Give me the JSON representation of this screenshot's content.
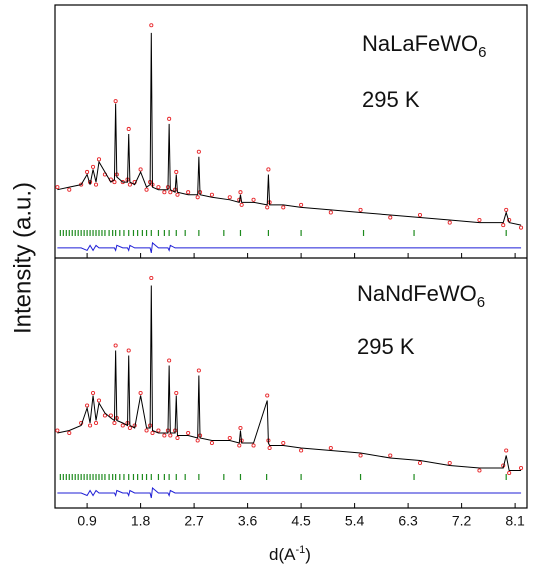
{
  "chart_data": [
    {
      "type": "rietveld",
      "label": "NaLaFeWO",
      "label_sub": "6",
      "temperature": "295 K",
      "ylabel": "Intensity (a.u.)",
      "xlim": [
        0.36,
        8.3
      ],
      "ylim": [
        0,
        100
      ],
      "x": [
        0.4,
        0.6,
        0.8,
        0.9,
        0.95,
        1.0,
        1.05,
        1.1,
        1.2,
        1.3,
        1.36,
        1.38,
        1.4,
        1.5,
        1.58,
        1.6,
        1.62,
        1.7,
        1.8,
        1.9,
        1.96,
        1.98,
        2.0,
        2.1,
        2.2,
        2.26,
        2.28,
        2.3,
        2.38,
        2.4,
        2.42,
        2.6,
        2.76,
        2.78,
        2.8,
        3.0,
        3.3,
        3.46,
        3.48,
        3.5,
        3.7,
        3.93,
        3.95,
        3.97,
        4.2,
        4.5,
        5.0,
        5.5,
        6.0,
        6.5,
        7.0,
        7.5,
        7.9,
        7.95,
        8.0,
        8.2
      ],
      "series": [
        {
          "name": "Observed",
          "color": "#e8262a",
          "values": [
            28,
            27,
            29,
            34,
            30,
            36,
            29,
            39,
            33,
            31,
            30,
            62,
            33,
            30,
            31,
            51,
            29,
            30,
            35,
            27,
            30,
            92,
            29,
            28,
            26,
            28,
            55,
            26,
            27,
            34,
            25,
            26,
            24,
            42,
            26,
            25,
            24,
            23,
            26,
            21,
            23,
            20,
            35,
            22,
            20,
            21,
            18,
            19,
            16,
            17,
            14,
            15,
            13,
            19,
            15,
            12
          ]
        },
        {
          "name": "Calculated",
          "color": "#000000",
          "values": [
            27,
            28,
            29,
            33,
            29,
            35,
            30,
            38,
            34,
            30,
            31,
            61,
            32,
            30,
            30,
            49,
            30,
            29,
            34,
            28,
            29,
            89,
            28,
            27,
            27,
            27,
            53,
            27,
            26,
            33,
            26,
            25,
            25,
            40,
            25,
            24,
            23,
            22,
            25,
            22,
            22,
            21,
            33,
            21,
            21,
            20,
            19,
            18,
            17,
            16,
            15,
            14,
            14,
            18,
            14,
            13
          ]
        },
        {
          "name": "Difference",
          "color": "#1f1fd6",
          "values": [
            4,
            4,
            4,
            3,
            5,
            3,
            5,
            4,
            4,
            4,
            4,
            3,
            5,
            4,
            4,
            3,
            5,
            4,
            4,
            4,
            4,
            2,
            6,
            4,
            4,
            4,
            3,
            5,
            4,
            4,
            4,
            4,
            4,
            4,
            4,
            4,
            4,
            4,
            4,
            4,
            4,
            4,
            4,
            4,
            4,
            4,
            4,
            4,
            4,
            4,
            4,
            4,
            4,
            4,
            4,
            4
          ]
        }
      ],
      "reflections": {
        "color": "#1d8a1d",
        "x": [
          0.45,
          0.5,
          0.55,
          0.6,
          0.65,
          0.7,
          0.75,
          0.8,
          0.85,
          0.9,
          0.95,
          1.0,
          1.05,
          1.1,
          1.15,
          1.2,
          1.27,
          1.33,
          1.38,
          1.45,
          1.52,
          1.6,
          1.68,
          1.75,
          1.83,
          1.9,
          1.98,
          2.1,
          2.2,
          2.28,
          2.4,
          2.55,
          2.78,
          3.2,
          3.48,
          3.95,
          4.5,
          5.55,
          6.4,
          7.95
        ]
      }
    },
    {
      "type": "rietveld",
      "label": "NaNdFeWO",
      "label_sub": "6",
      "temperature": "295 K",
      "xlabel": "d(A",
      "xlabel_sup": "-1",
      "xlabel_end": ")",
      "xlim": [
        0.36,
        8.3
      ],
      "ylim": [
        0,
        100
      ],
      "xticks": [
        0.9,
        1.8,
        2.7,
        3.6,
        4.5,
        5.4,
        6.3,
        7.2,
        8.1
      ],
      "x": [
        0.4,
        0.6,
        0.8,
        0.9,
        0.95,
        1.0,
        1.05,
        1.1,
        1.2,
        1.3,
        1.36,
        1.38,
        1.4,
        1.5,
        1.58,
        1.6,
        1.62,
        1.7,
        1.8,
        1.9,
        1.96,
        1.98,
        2.0,
        2.1,
        2.2,
        2.26,
        2.28,
        2.3,
        2.38,
        2.4,
        2.42,
        2.6,
        2.76,
        2.78,
        2.8,
        3.0,
        3.3,
        3.46,
        3.48,
        3.5,
        3.7,
        3.93,
        3.95,
        3.97,
        4.2,
        4.5,
        5.0,
        5.5,
        6.0,
        6.5,
        7.0,
        7.5,
        7.9,
        7.95,
        8.0,
        8.2
      ],
      "series": [
        {
          "name": "Observed",
          "color": "#e8262a",
          "values": [
            31,
            30,
            34,
            41,
            33,
            46,
            34,
            43,
            37,
            37,
            34,
            65,
            36,
            33,
            34,
            63,
            32,
            33,
            46,
            31,
            33,
            92,
            30,
            31,
            29,
            31,
            59,
            29,
            31,
            46,
            28,
            30,
            27,
            55,
            29,
            26,
            28,
            25,
            32,
            27,
            25,
            45,
            27,
            24,
            26,
            23,
            24,
            21,
            21,
            18,
            18,
            15,
            17,
            23,
            14,
            16
          ]
        },
        {
          "name": "Calculated",
          "color": "#000000",
          "values": [
            30,
            31,
            33,
            40,
            34,
            45,
            35,
            42,
            38,
            36,
            35,
            63,
            35,
            34,
            33,
            61,
            33,
            32,
            45,
            32,
            32,
            89,
            31,
            30,
            30,
            30,
            57,
            30,
            30,
            45,
            29,
            29,
            28,
            53,
            28,
            27,
            27,
            26,
            31,
            26,
            26,
            43,
            26,
            25,
            25,
            24,
            23,
            22,
            20,
            19,
            17,
            16,
            16,
            21,
            15,
            15
          ]
        },
        {
          "name": "Difference",
          "color": "#1f1fd6",
          "values": [
            6,
            6,
            6,
            5,
            7,
            5,
            7,
            6,
            6,
            6,
            6,
            5,
            7,
            6,
            6,
            5,
            7,
            6,
            6,
            6,
            6,
            4,
            8,
            6,
            6,
            6,
            5,
            7,
            6,
            6,
            6,
            6,
            6,
            6,
            6,
            6,
            6,
            6,
            6,
            6,
            6,
            6,
            6,
            6,
            6,
            6,
            6,
            6,
            6,
            6,
            6,
            6,
            6,
            6,
            6,
            6
          ]
        }
      ],
      "reflections": {
        "color": "#1d8a1d",
        "x": [
          0.45,
          0.5,
          0.55,
          0.6,
          0.65,
          0.7,
          0.75,
          0.8,
          0.85,
          0.9,
          0.95,
          1.0,
          1.05,
          1.1,
          1.15,
          1.2,
          1.27,
          1.33,
          1.38,
          1.45,
          1.52,
          1.6,
          1.68,
          1.75,
          1.83,
          1.9,
          1.98,
          2.1,
          2.2,
          2.28,
          2.4,
          2.55,
          2.78,
          3.2,
          3.48,
          3.92,
          4.5,
          5.5,
          6.4,
          7.95
        ]
      }
    }
  ]
}
